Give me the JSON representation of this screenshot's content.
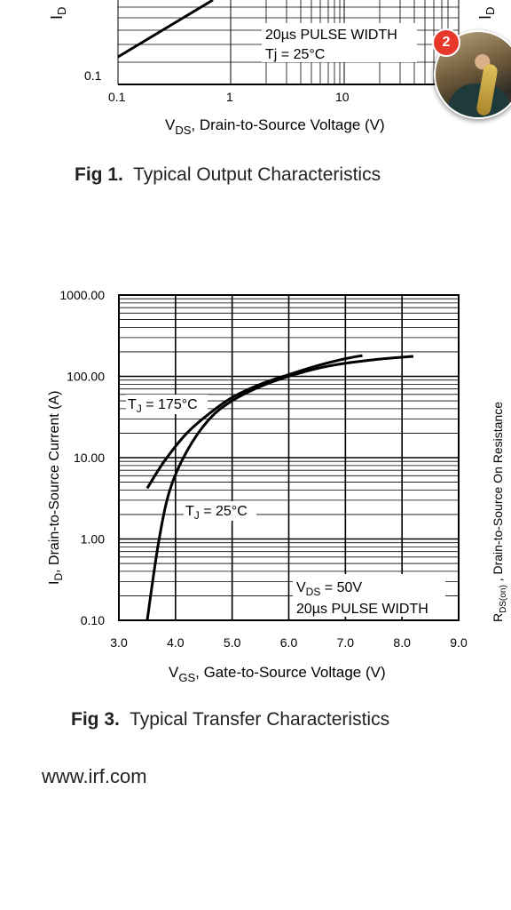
{
  "fig1": {
    "ylabel": "I",
    "ylabel_sub": "D",
    "right_label": "I",
    "right_label_sub": "D",
    "ytick": "0.1",
    "xticks": [
      "0.1",
      "1",
      "10"
    ],
    "xlabel_prefix": "V",
    "xlabel_sub": "DS",
    "xlabel_rest": ", Drain-to-Source Voltage (V)",
    "annotation_line1": "20µs PULSE WIDTH",
    "annotation_line2": "Tj = 25°C",
    "caption_num": "Fig 1.",
    "caption_text": "Typical Output Characteristics"
  },
  "notification": {
    "count": "2"
  },
  "chart_data": {
    "type": "line",
    "title": "",
    "xlabel": "VGS, Gate-to-Source Voltage (V)",
    "ylabel": "ID, Drain-to-Source Current (A)",
    "xlim": [
      3.0,
      9.0
    ],
    "ylim": [
      0.1,
      1000
    ],
    "yscale": "log",
    "grid": true,
    "xticks": [
      "3.0",
      "4.0",
      "5.0",
      "6.0",
      "7.0",
      "8.0",
      "9.0"
    ],
    "yticks": [
      "1000.00",
      "100.00",
      "10.00",
      "1.00",
      "0.10"
    ],
    "series": [
      {
        "name": "TJ = 175°C",
        "label_prefix": "T",
        "label_sub": "J",
        "label_rest": " = 175°C",
        "x": [
          3.5,
          3.8,
          4.2,
          4.6,
          5.0,
          5.5,
          6.0,
          6.5,
          7.0,
          7.3
        ],
        "y": [
          4.2,
          9,
          20,
          35,
          55,
          80,
          105,
          135,
          165,
          180
        ]
      },
      {
        "name": "TJ = 25°C",
        "label_prefix": "T",
        "label_sub": "J",
        "label_rest": " = 25°C",
        "x": [
          3.5,
          3.7,
          3.9,
          4.2,
          4.6,
          5.0,
          5.5,
          6.0,
          6.5,
          7.0,
          7.5,
          8.0,
          8.2
        ],
        "y": [
          0.1,
          0.9,
          4,
          12,
          30,
          50,
          75,
          100,
          125,
          145,
          160,
          172,
          176
        ]
      }
    ],
    "annotation_vds_prefix": "V",
    "annotation_vds_sub": "DS",
    "annotation_vds_rest": " = 50V",
    "annotation_pulse": "20µs PULSE WIDTH",
    "xlabel_prefix": "V",
    "xlabel_sub": "GS",
    "xlabel_rest": ", Gate-to-Source Voltage (V)",
    "ylabel_prefix": "I",
    "ylabel_sub": "D",
    "ylabel_rest": ", Drain-to-Source Current  (A)",
    "caption_num": "Fig 3.",
    "caption_text": "Typical Transfer Characteristics"
  },
  "right_clip": {
    "line1": "R",
    "line1_sub": "DS(on)",
    "line1_rest": " , Drain-to-Source On Resistance"
  },
  "footer": {
    "url": "www.irf.com"
  }
}
